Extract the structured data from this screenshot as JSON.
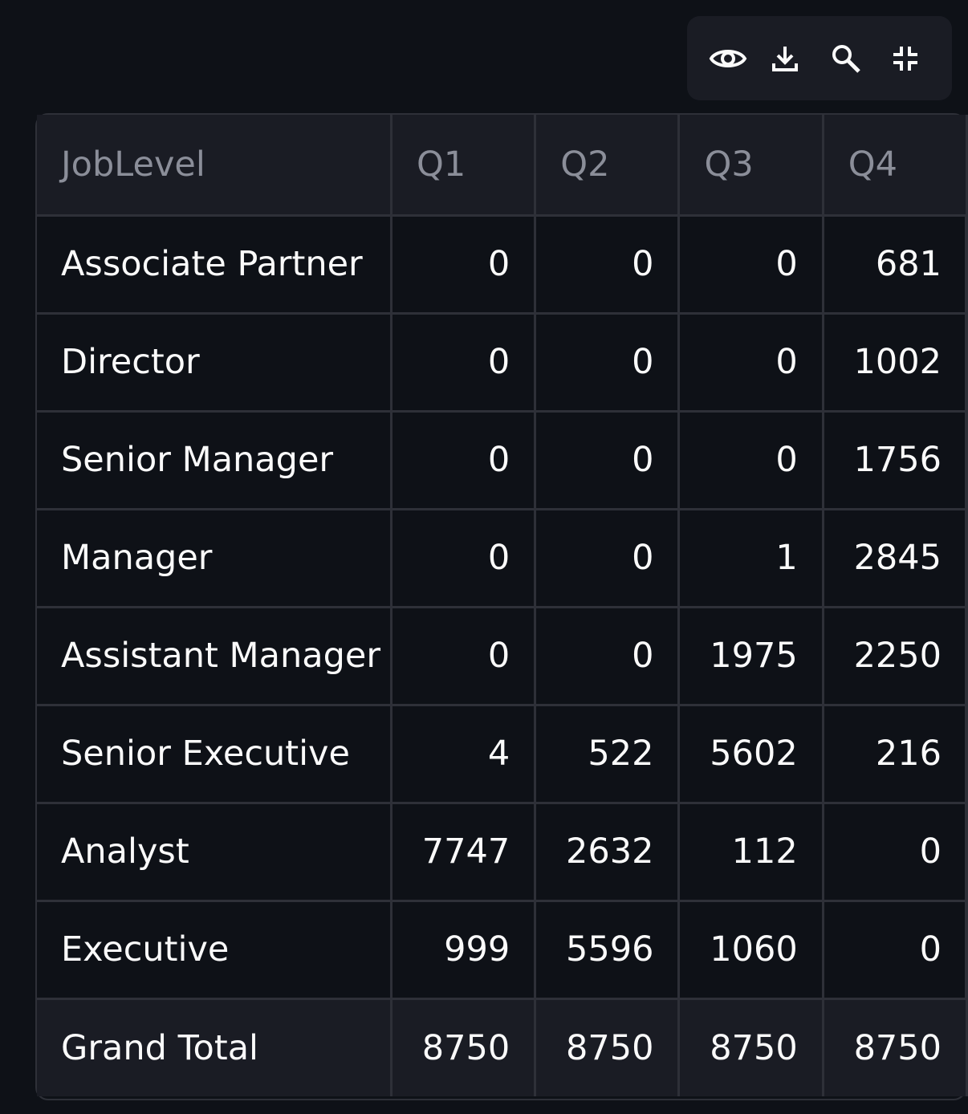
{
  "toolbar": {
    "buttons": [
      {
        "name": "show-hide-columns-button",
        "icon": "eye-icon"
      },
      {
        "name": "download-button",
        "icon": "download-icon"
      },
      {
        "name": "search-button",
        "icon": "search-icon"
      },
      {
        "name": "fullscreen-button",
        "icon": "collapse-icon"
      }
    ]
  },
  "table": {
    "headers": [
      "JobLevel",
      "Q1",
      "Q2",
      "Q3",
      "Q4"
    ],
    "rows": [
      {
        "label": "Associate Partner",
        "values": [
          "0",
          "0",
          "0",
          "681"
        ]
      },
      {
        "label": "Director",
        "values": [
          "0",
          "0",
          "0",
          "1002"
        ]
      },
      {
        "label": "Senior Manager",
        "values": [
          "0",
          "0",
          "0",
          "1756"
        ]
      },
      {
        "label": "Manager",
        "values": [
          "0",
          "0",
          "1",
          "2845"
        ]
      },
      {
        "label": "Assistant Manager",
        "values": [
          "0",
          "0",
          "1975",
          "2250"
        ]
      },
      {
        "label": "Senior Executive",
        "values": [
          "4",
          "522",
          "5602",
          "216"
        ]
      },
      {
        "label": "Analyst",
        "values": [
          "7747",
          "2632",
          "112",
          "0"
        ]
      },
      {
        "label": "Executive",
        "values": [
          "999",
          "5596",
          "1060",
          "0"
        ]
      }
    ],
    "total": {
      "label": "Grand Total",
      "values": [
        "8750",
        "8750",
        "8750",
        "8750"
      ]
    }
  },
  "colors": {
    "background": "#0e1117",
    "header_bg": "#1a1c24",
    "border": "#2e3038",
    "header_text": "#8b8e99",
    "cell_text": "#fafafa"
  }
}
